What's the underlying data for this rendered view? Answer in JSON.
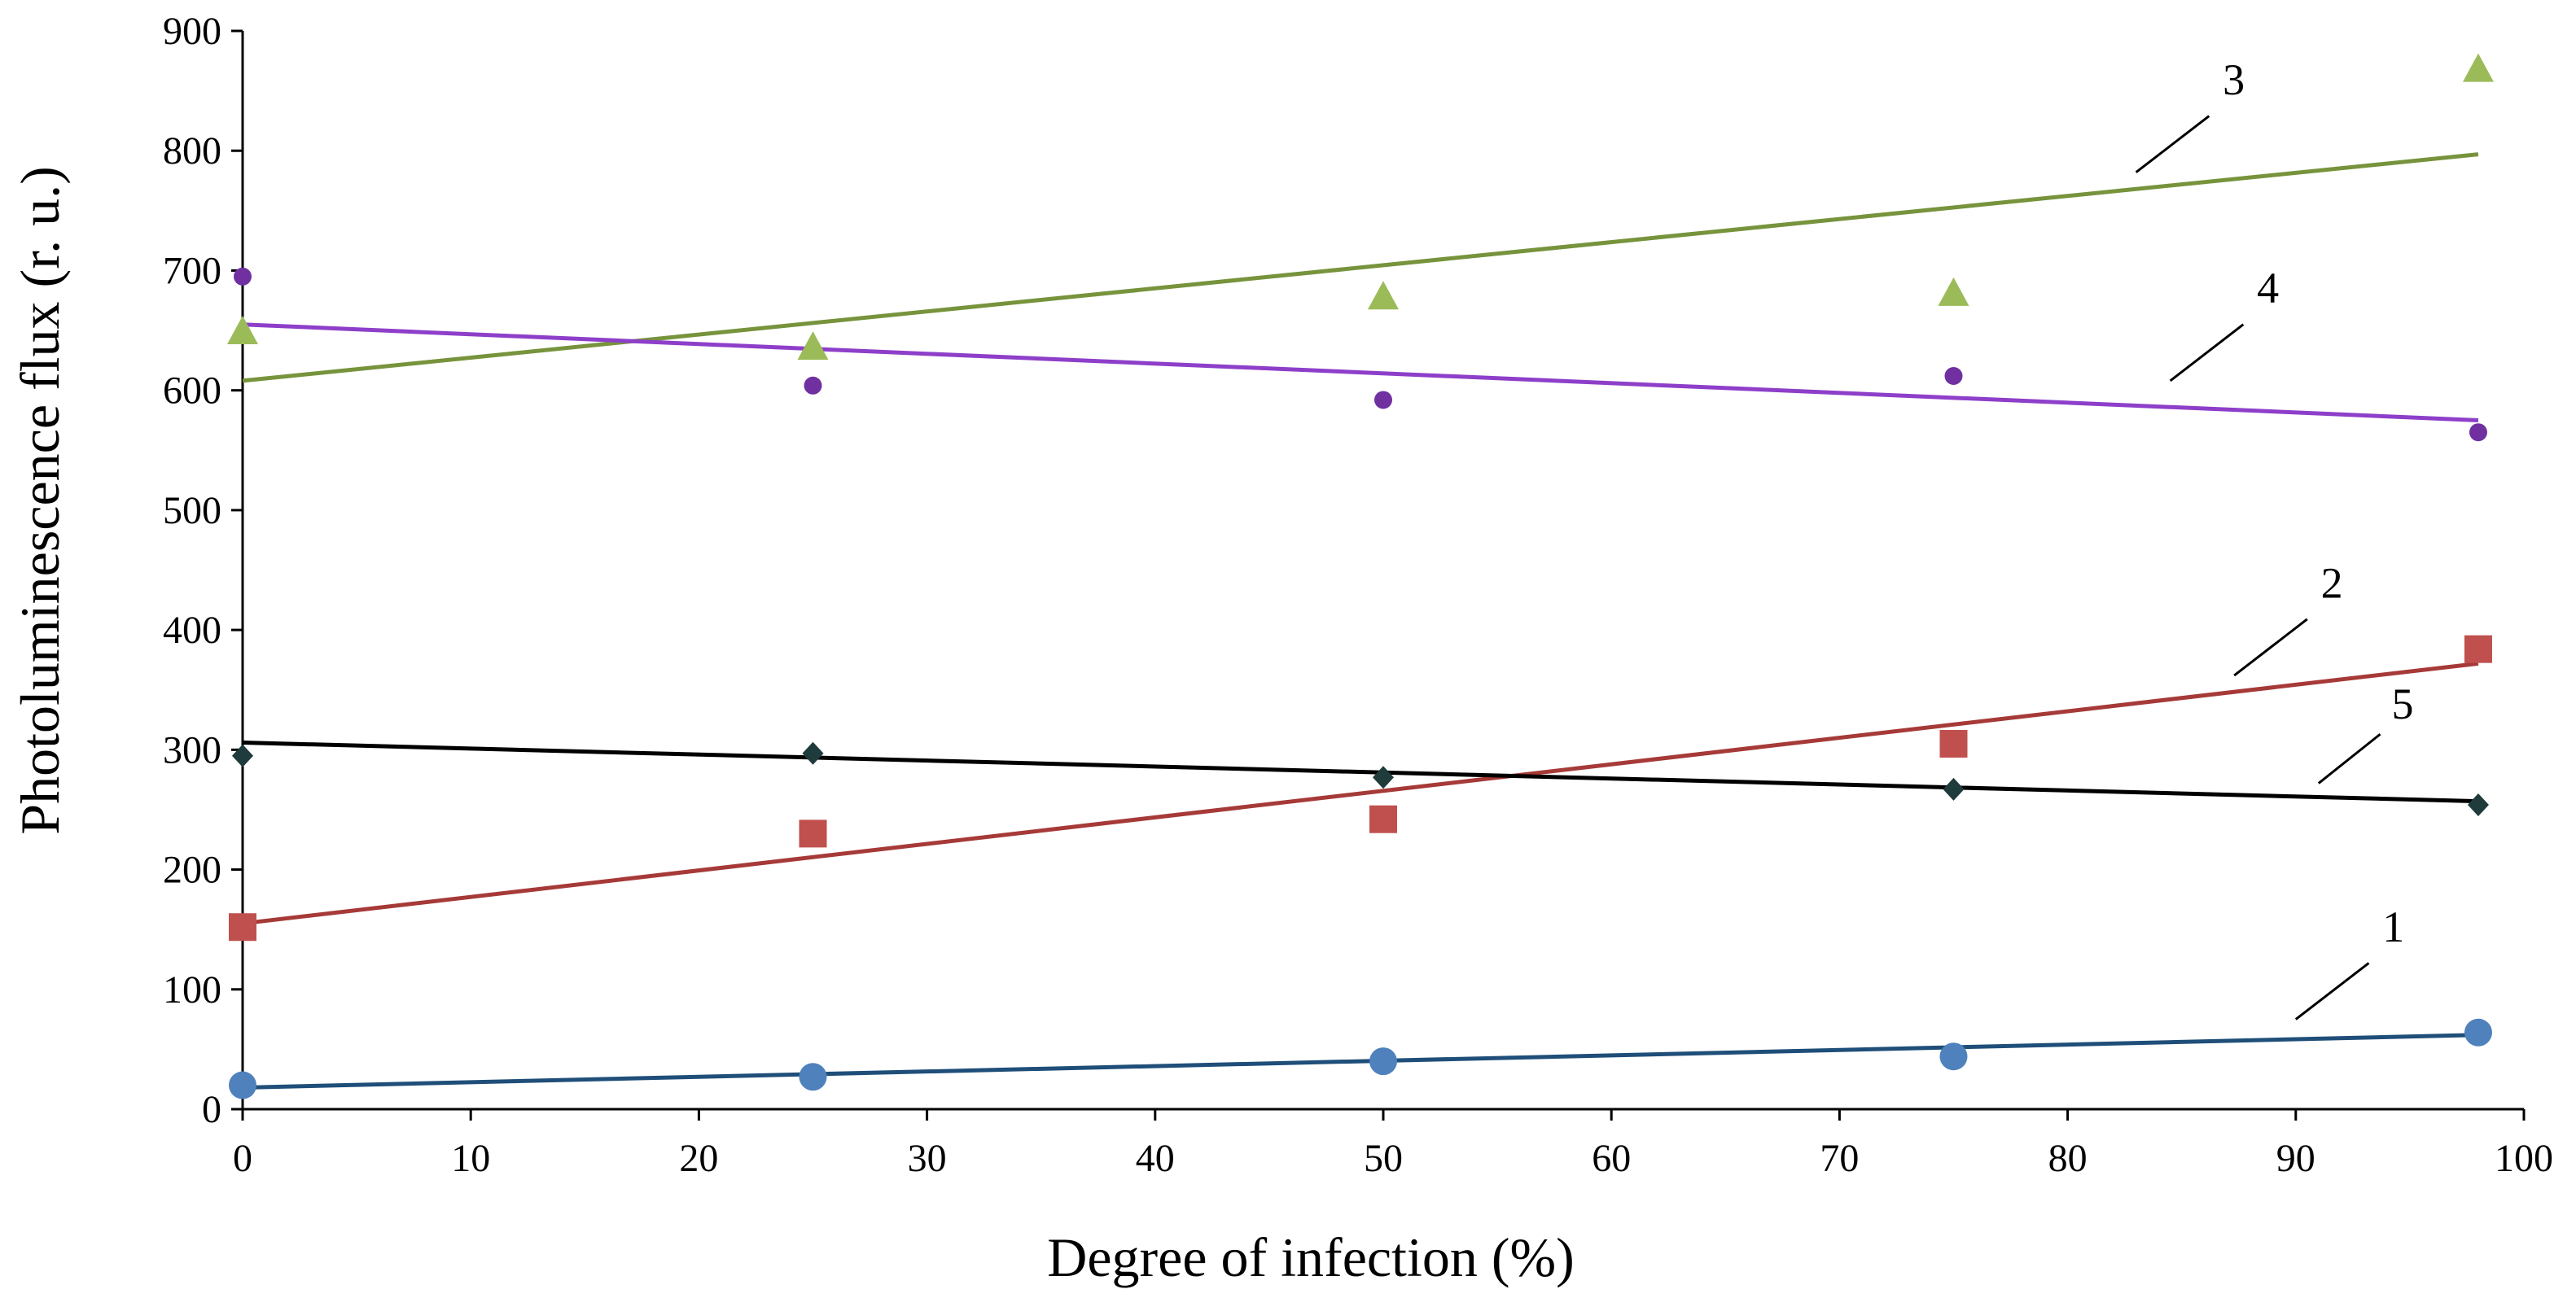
{
  "chart_data": {
    "type": "scatter",
    "title": "",
    "xlabel": "Degree of infection (%)",
    "ylabel": "Photoluminescence flux (r. u.)",
    "xlim": [
      0,
      100
    ],
    "ylim": [
      0,
      900
    ],
    "xticks": [
      0,
      10,
      20,
      30,
      40,
      50,
      60,
      70,
      80,
      90,
      100
    ],
    "yticks": [
      0,
      100,
      200,
      300,
      400,
      500,
      600,
      700,
      800,
      900
    ],
    "grid": false,
    "legend": "none",
    "series": [
      {
        "name": "1",
        "marker": "circle",
        "color": "#4F81BD",
        "trend_color": "#1F4E79",
        "x": [
          0,
          25,
          50,
          75,
          98
        ],
        "y": [
          20,
          27,
          40,
          44,
          64
        ],
        "trendline": {
          "y_start": 18,
          "y_end": 62
        }
      },
      {
        "name": "2",
        "marker": "square",
        "color": "#C0504D",
        "trend_color": "#A63A38",
        "x": [
          0,
          25,
          50,
          75,
          98
        ],
        "y": [
          152,
          230,
          242,
          305,
          384
        ],
        "trendline": {
          "y_start": 155,
          "y_end": 372
        }
      },
      {
        "name": "3",
        "marker": "triangle",
        "color": "#9BBB59",
        "trend_color": "#77933C",
        "x": [
          0,
          25,
          50,
          75,
          98
        ],
        "y": [
          648,
          635,
          677,
          680,
          867
        ],
        "trendline": {
          "y_start": 608,
          "y_end": 797
        }
      },
      {
        "name": "4",
        "marker": "circle-small",
        "color": "#7030A0",
        "trend_color": "#8E3FC9",
        "x": [
          0,
          25,
          50,
          75,
          98
        ],
        "y": [
          695,
          604,
          592,
          612,
          565
        ],
        "trendline": {
          "y_start": 655,
          "y_end": 575
        }
      },
      {
        "name": "5",
        "marker": "diamond",
        "color": "#1F3B3B",
        "trend_color": "#000000",
        "x": [
          0,
          25,
          50,
          75,
          98
        ],
        "y": [
          295,
          297,
          277,
          267,
          254
        ],
        "trendline": {
          "y_start": 306,
          "y_end": 257
        }
      }
    ]
  }
}
